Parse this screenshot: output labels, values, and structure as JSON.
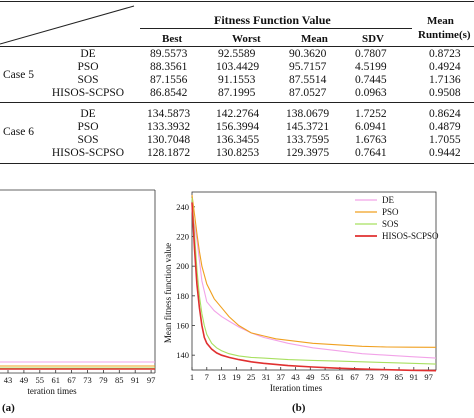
{
  "table": {
    "header": {
      "group": "Fitness Function Value",
      "best": "Best",
      "worst": "Worst",
      "mean": "Mean",
      "sdv": "SDV",
      "runtime_line1": "Mean",
      "runtime_line2": "Runtime(s)"
    },
    "cases": [
      {
        "label": "Case 5",
        "rows": [
          {
            "algo": "DE",
            "best": "89.5573",
            "worst": "92.5589",
            "mean": "90.3620",
            "sdv": "0.7807",
            "runtime": "0.8723"
          },
          {
            "algo": "PSO",
            "best": "88.3561",
            "worst": "103.4429",
            "mean": "95.7157",
            "sdv": "4.5199",
            "runtime": "0.4924"
          },
          {
            "algo": "SOS",
            "best": "87.1556",
            "worst": "91.1553",
            "mean": "87.5514",
            "sdv": "0.7445",
            "runtime": "1.7136"
          },
          {
            "algo": "HISOS-SCPSO",
            "best": "86.8542",
            "worst": "87.1995",
            "mean": "87.0527",
            "sdv": "0.0963",
            "runtime": "0.9508"
          }
        ]
      },
      {
        "label": "Case 6",
        "rows": [
          {
            "algo": "DE",
            "best": "134.5873",
            "worst": "142.2764",
            "mean": "138.0679",
            "sdv": "1.7252",
            "runtime": "0.8624"
          },
          {
            "algo": "PSO",
            "best": "133.3932",
            "worst": "156.3994",
            "mean": "145.3721",
            "sdv": "6.0941",
            "runtime": "0.4879"
          },
          {
            "algo": "SOS",
            "best": "130.7048",
            "worst": "136.3455",
            "mean": "133.7595",
            "sdv": "1.6763",
            "runtime": "1.7055"
          },
          {
            "algo": "HISOS-SCPSO",
            "best": "128.1872",
            "worst": "130.8253",
            "mean": "129.3975",
            "sdv": "0.7641",
            "runtime": "0.9442"
          }
        ]
      }
    ]
  },
  "panel_a": {
    "label": "(a)",
    "xlabel": "teration times",
    "x_ticks": [
      "43",
      "49",
      "55",
      "61",
      "67",
      "73",
      "79",
      "85",
      "91",
      "97"
    ]
  },
  "panel_b": {
    "label": "(b)",
    "xlabel": "Iteration times",
    "ylabel": "Mean fitness function value"
  },
  "chart_data": [
    {
      "type": "line",
      "title": "",
      "xlabel": "teration times",
      "ylabel": "",
      "x": [
        43,
        49,
        55,
        61,
        67,
        73,
        79,
        85,
        91,
        97
      ],
      "series": [
        {
          "name": "",
          "color": "#f2a3e8",
          "values": [
            0,
            0,
            0,
            0,
            0,
            0,
            0,
            0,
            0,
            0
          ]
        },
        {
          "name": "",
          "color": "#f0a020",
          "values": [
            0,
            0,
            0,
            0,
            0,
            0,
            0,
            0,
            0,
            0
          ]
        },
        {
          "name": "",
          "color": "#a8e060",
          "values": [
            0,
            0,
            0,
            0,
            0,
            0,
            0,
            0,
            0,
            0
          ]
        },
        {
          "name": "",
          "color": "#e03030",
          "values": [
            0,
            0,
            0,
            0,
            0,
            0,
            0,
            0,
            0,
            0
          ]
        }
      ]
    },
    {
      "type": "line",
      "title": "",
      "xlabel": "Iteration times",
      "ylabel": "Mean fitness function value",
      "ylim": [
        130,
        250
      ],
      "y_ticks": [
        140,
        160,
        180,
        200,
        220,
        240
      ],
      "x_ticks": [
        1,
        7,
        13,
        19,
        25,
        31,
        37,
        43,
        49,
        55,
        61,
        67,
        73,
        79,
        85,
        91,
        97
      ],
      "xlim": [
        1,
        100
      ],
      "legend": "top-right",
      "series": [
        {
          "name": "DE",
          "color": "#f2a3e8",
          "x": [
            1,
            3,
            5,
            7,
            10,
            13,
            16,
            20,
            25,
            30,
            35,
            40,
            50,
            60,
            70,
            80,
            90,
            100
          ],
          "values": [
            238,
            218,
            190,
            176,
            170,
            166,
            163,
            159,
            155,
            152,
            150,
            148,
            145,
            143,
            141,
            140,
            139,
            138
          ]
        },
        {
          "name": "PSO",
          "color": "#f0a020",
          "x": [
            1,
            2,
            3,
            4,
            5,
            7,
            10,
            13,
            16,
            20,
            25,
            30,
            35,
            40,
            50,
            60,
            70,
            80,
            90,
            100
          ],
          "values": [
            248,
            235,
            222,
            210,
            200,
            188,
            178,
            172,
            166,
            160,
            155,
            153,
            151,
            150,
            148,
            147,
            146,
            145.5,
            145.4,
            145.3
          ]
        },
        {
          "name": "SOS",
          "color": "#a8e060",
          "x": [
            1,
            2,
            3,
            4,
            5,
            6,
            7,
            9,
            11,
            13,
            16,
            20,
            25,
            30,
            40,
            50,
            60,
            70,
            80,
            90,
            100
          ],
          "values": [
            246,
            222,
            198,
            180,
            168,
            160,
            154,
            148,
            145,
            143,
            141,
            139.5,
            138.5,
            138,
            137,
            136.5,
            136,
            135.5,
            135,
            134.5,
            134
          ]
        },
        {
          "name": "HISOS-SCPSO",
          "color": "#e03030",
          "x": [
            1,
            2,
            3,
            4,
            5,
            6,
            7,
            9,
            11,
            13,
            16,
            20,
            25,
            30,
            40,
            50,
            60,
            70,
            80,
            90,
            100
          ],
          "values": [
            243,
            212,
            188,
            172,
            160,
            152,
            148,
            144,
            141.5,
            140,
            138.5,
            137,
            135.5,
            134.5,
            133,
            132,
            131.2,
            130.6,
            130.2,
            129.8,
            129.5
          ]
        }
      ]
    }
  ]
}
